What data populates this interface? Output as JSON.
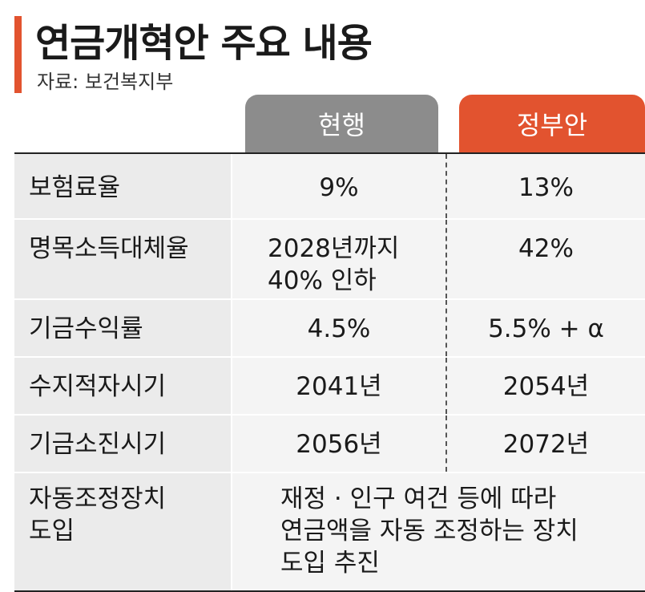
{
  "title": "연금개혁안 주요 내용",
  "source": "자료: 보건복지부",
  "columns": {
    "current": "현행",
    "government": "정부안"
  },
  "colors": {
    "accent": "#e2532f",
    "current_header": "#8c8c8c"
  },
  "rows": [
    {
      "label": "보험료율",
      "current": "9%",
      "government": "13%"
    },
    {
      "label": "명목소득대체율",
      "current_line1": "2028년까지",
      "current_line2": "40% 인하",
      "government": "42%"
    },
    {
      "label": "기금수익률",
      "current": "4.5%",
      "government": "5.5% + α"
    },
    {
      "label": "수지적자시기",
      "current": "2041년",
      "government": "2054년"
    },
    {
      "label": "기금소진시기",
      "current": "2056년",
      "government": "2072년"
    },
    {
      "label_line1": "자동조정장치",
      "label_line2": "도입",
      "span_line1": "재정 · 인구 여건 등에 따라",
      "span_line2": "연금액을 자동 조정하는 장치",
      "span_line3": "도입 추진"
    }
  ]
}
